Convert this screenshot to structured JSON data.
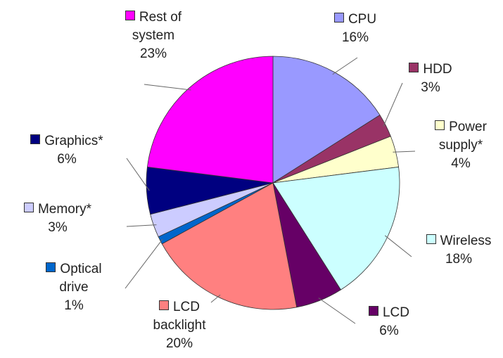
{
  "chart_data": {
    "type": "pie",
    "categories": [
      "CPU",
      "HDD",
      "Power supply*",
      "Wireless",
      "LCD",
      "LCD backlight",
      "Optical drive",
      "Memory*",
      "Graphics*",
      "Rest of system"
    ],
    "values": [
      16,
      3,
      4,
      18,
      6,
      20,
      1,
      3,
      6,
      23
    ],
    "value_labels": [
      "16%",
      "3%",
      "4%",
      "18%",
      "6%",
      "20%",
      "1%",
      "3%",
      "6%",
      "23%"
    ],
    "colors": [
      "#9999ff",
      "#993366",
      "#ffffcc",
      "#ccffff",
      "#660066",
      "#ff8080",
      "#0066cc",
      "#ccccff",
      "#000080",
      "#ff00ff"
    ]
  }
}
